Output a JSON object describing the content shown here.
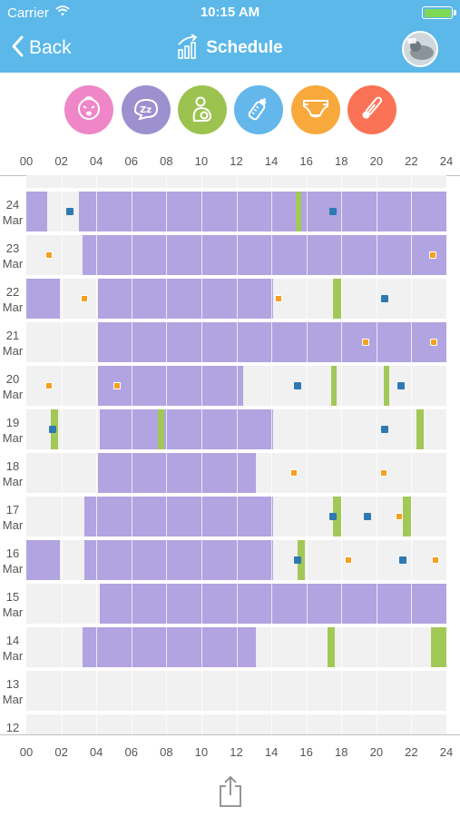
{
  "status_bar": {
    "carrier": "Carrier",
    "time": "10:15 AM"
  },
  "nav": {
    "back_label": "Back",
    "title": "Schedule"
  },
  "category_icons": [
    {
      "name": "crying-baby-icon",
      "color": "#ef86c7"
    },
    {
      "name": "sleep-icon",
      "color": "#9d90cf"
    },
    {
      "name": "feeding-icon",
      "color": "#9cc34f"
    },
    {
      "name": "bottle-icon",
      "color": "#63b7ea"
    },
    {
      "name": "diaper-icon",
      "color": "#f8a93c"
    },
    {
      "name": "thermometer-icon",
      "color": "#fb7356"
    }
  ],
  "hour_ticks": [
    "00",
    "02",
    "04",
    "06",
    "08",
    "10",
    "12",
    "14",
    "16",
    "18",
    "20",
    "22",
    "24"
  ],
  "colors": {
    "sleep": "#b1a4e0",
    "feed": "#a2c857",
    "bottle": "#2f79b3",
    "diaper": "#f5a021"
  },
  "days": [
    {
      "day": "",
      "month": "Mar",
      "sleep": [],
      "feed": [],
      "bottle": [],
      "diaper": []
    },
    {
      "day": "24",
      "month": "Mar",
      "sleep": [
        [
          0,
          1.2
        ],
        [
          3,
          24
        ]
      ],
      "feed": [
        [
          15.4,
          15.7
        ]
      ],
      "bottle": [
        2.5,
        17.5
      ],
      "diaper": []
    },
    {
      "day": "23",
      "month": "Mar",
      "sleep": [
        [
          3.2,
          24
        ]
      ],
      "feed": [],
      "bottle": [],
      "diaper": [
        1.3,
        23.2
      ]
    },
    {
      "day": "22",
      "month": "Mar",
      "sleep": [
        [
          0,
          1.9
        ],
        [
          4.1,
          14.1
        ]
      ],
      "feed": [
        [
          17.5,
          18
        ]
      ],
      "bottle": [
        20.5
      ],
      "diaper": [
        3.3,
        14.4
      ]
    },
    {
      "day": "21",
      "month": "Mar",
      "sleep": [
        [
          4.1,
          24
        ]
      ],
      "feed": [],
      "bottle": [],
      "diaper": [
        19.4,
        23.3
      ]
    },
    {
      "day": "20",
      "month": "Mar",
      "sleep": [
        [
          4.1,
          12.4
        ]
      ],
      "feed": [
        [
          17.4,
          17.7
        ],
        [
          20.4,
          20.7
        ]
      ],
      "bottle": [
        15.5,
        21.4
      ],
      "diaper": [
        1.3,
        5.2
      ]
    },
    {
      "day": "19",
      "month": "Mar",
      "sleep": [
        [
          4.2,
          14.1
        ]
      ],
      "feed": [
        [
          1.4,
          1.8
        ],
        [
          7.5,
          7.9
        ],
        [
          22.3,
          22.7
        ]
      ],
      "bottle": [
        1.5,
        20.5
      ],
      "diaper": []
    },
    {
      "day": "18",
      "month": "Mar",
      "sleep": [
        [
          4.1,
          13.1
        ]
      ],
      "feed": [],
      "bottle": [],
      "diaper": [
        15.3,
        20.4
      ]
    },
    {
      "day": "17",
      "month": "Mar",
      "sleep": [
        [
          3.3,
          14.1
        ]
      ],
      "feed": [
        [
          17.5,
          18
        ],
        [
          21.5,
          22
        ]
      ],
      "bottle": [
        17.5,
        19.5
      ],
      "diaper": [
        21.3
      ]
    },
    {
      "day": "16",
      "month": "Mar",
      "sleep": [
        [
          0,
          1.9
        ],
        [
          3.3,
          14.1
        ]
      ],
      "feed": [
        [
          15.5,
          15.9
        ]
      ],
      "bottle": [
        15.5,
        21.5
      ],
      "diaper": [
        18.4,
        23.4
      ]
    },
    {
      "day": "15",
      "month": "Mar",
      "sleep": [
        [
          4.2,
          24
        ]
      ],
      "feed": [],
      "bottle": [],
      "diaper": []
    },
    {
      "day": "14",
      "month": "Mar",
      "sleep": [
        [
          3.2,
          13.1
        ]
      ],
      "feed": [
        [
          17.2,
          17.6
        ],
        [
          23.1,
          24
        ]
      ],
      "bottle": [],
      "diaper": []
    },
    {
      "day": "13",
      "month": "Mar",
      "sleep": [],
      "feed": [],
      "bottle": [],
      "diaper": []
    },
    {
      "day": "12",
      "month": "Mar",
      "sleep": [],
      "feed": [],
      "bottle": [],
      "diaper": []
    }
  ]
}
